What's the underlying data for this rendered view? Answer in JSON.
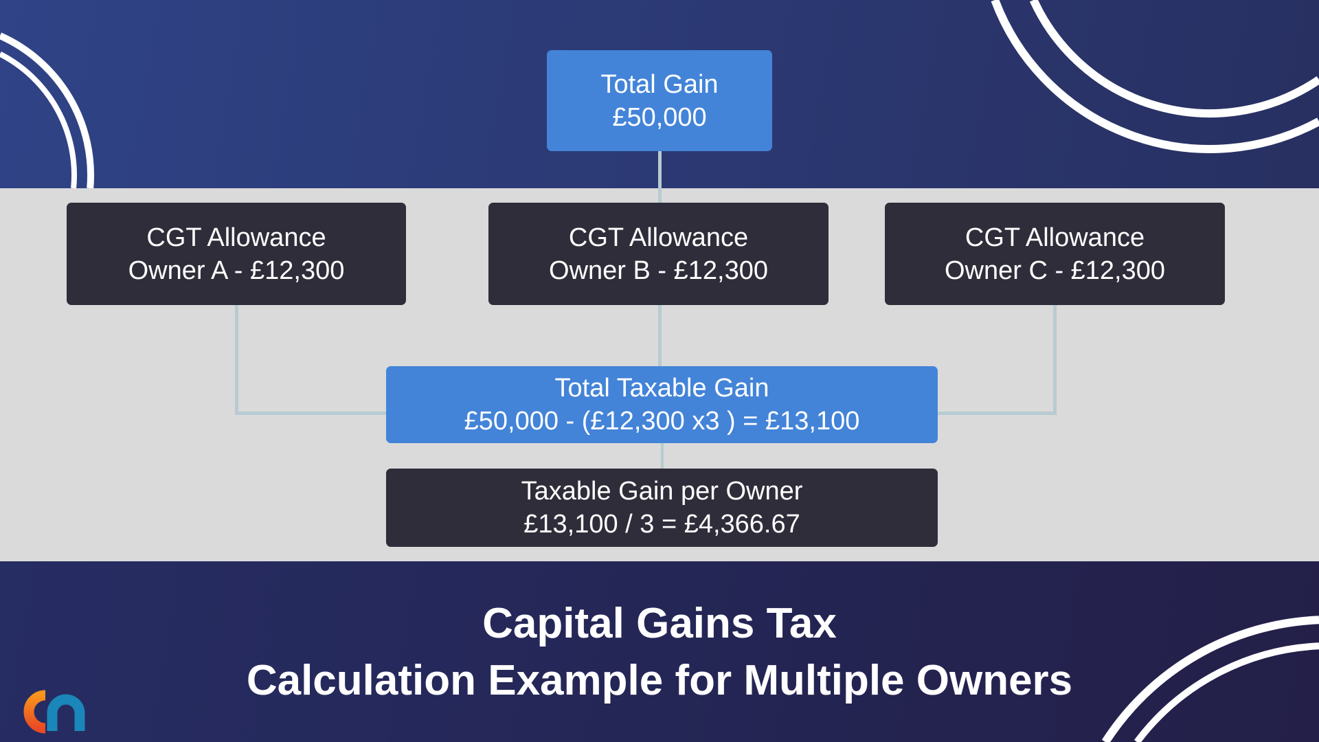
{
  "colors": {
    "accent_blue": "#4384d8",
    "dark_box": "#302d3a",
    "band_gray": "#dadada",
    "navy": "#2b3872",
    "connector": "#b8cbd2"
  },
  "diagram": {
    "total_gain": {
      "label": "Total Gain",
      "value": "£50,000"
    },
    "allowances": [
      {
        "label": "CGT Allowance",
        "value": "Owner A - £12,300"
      },
      {
        "label": "CGT Allowance",
        "value": "Owner B - £12,300"
      },
      {
        "label": "CGT Allowance",
        "value": "Owner C - £12,300"
      }
    ],
    "total_taxable": {
      "label": "Total Taxable Gain",
      "value": "£50,000 - (£12,300 x3 ) = £13,100"
    },
    "per_owner": {
      "label": "Taxable Gain per Owner",
      "value": "£13,100 / 3 = £4,366.67"
    }
  },
  "title": {
    "line1": "Capital Gains Tax",
    "line2": "Calculation Example for Multiple Owners"
  },
  "logo": {
    "text": "ca",
    "icon": "logo-icon"
  }
}
